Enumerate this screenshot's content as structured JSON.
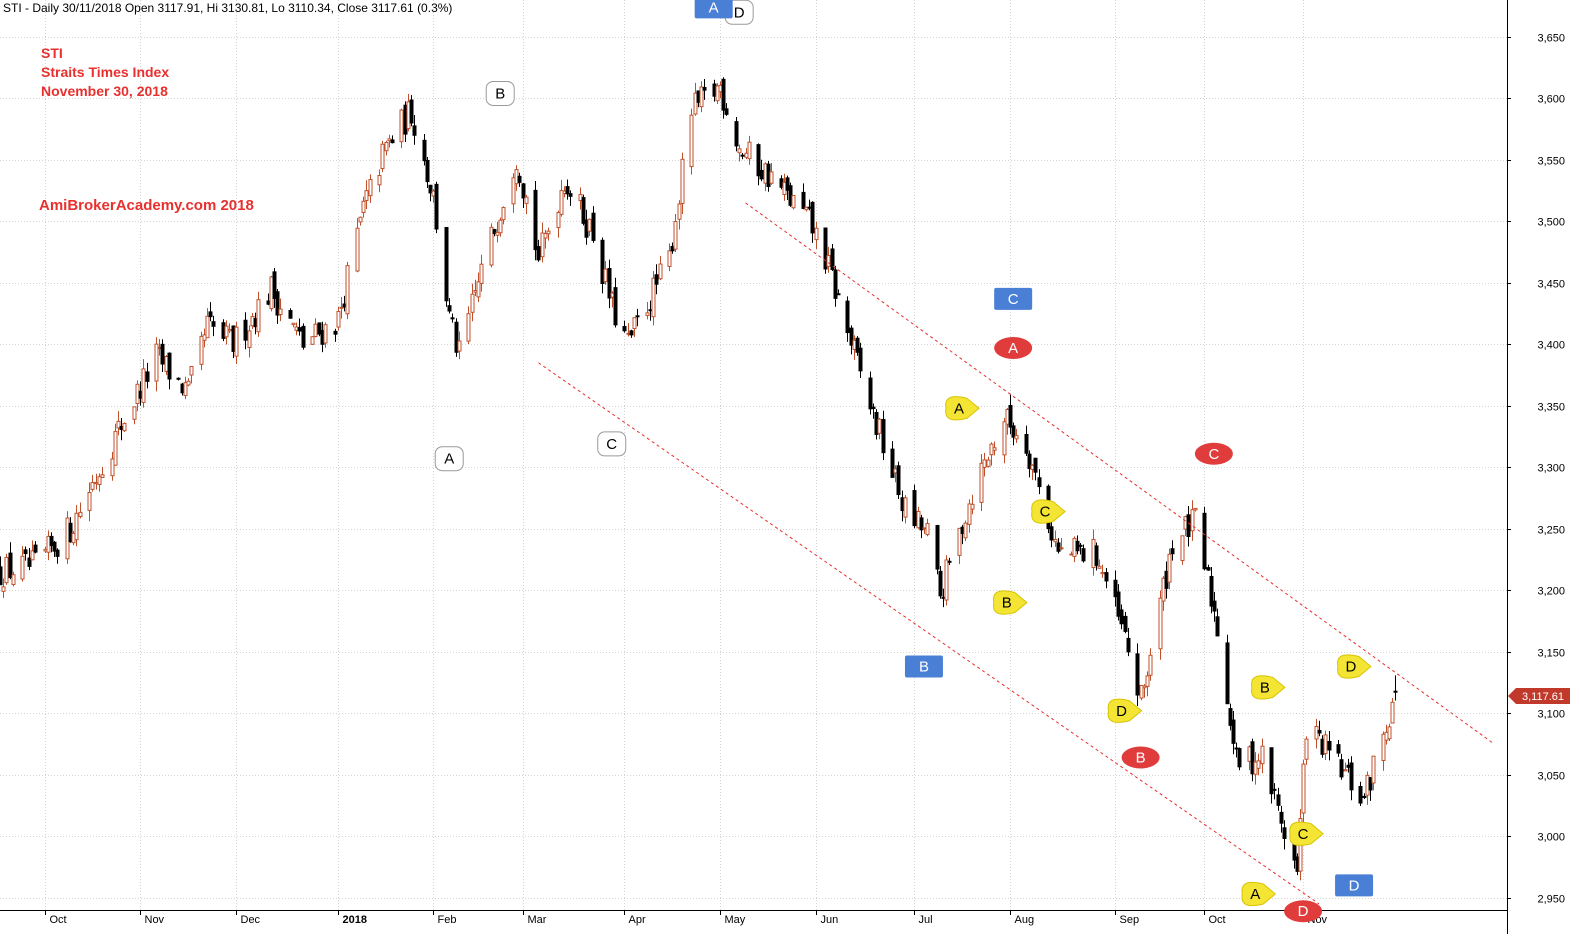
{
  "header": "STI - Daily 30/11/2018 Open 3117.91, Hi 3130.81, Lo 3110.34, Close 3117.61 (0.3%)",
  "title_lines": [
    "STI",
    "Straits Times Index",
    "November 30, 2018"
  ],
  "watermark": "AmiBrokerAcademy.com  2018",
  "colors": {
    "up": "#c0502a",
    "down": "#000000",
    "grid": "#d4d4d4",
    "channel": "#e8302e",
    "price_badge": "#c0392b",
    "badge_blue": "#4a7fd6",
    "badge_red": "#e03c3c",
    "badge_yellow": "#f4e535",
    "badge_white": "#ffffff"
  },
  "y_axis": {
    "range": [
      2940,
      3680
    ],
    "ticks": [
      {
        "value": 2950,
        "label": "2,950"
      },
      {
        "value": 3000,
        "label": "3,000"
      },
      {
        "value": 3050,
        "label": "3,050"
      },
      {
        "value": 3100,
        "label": "3,100"
      },
      {
        "value": 3150,
        "label": "3,150"
      },
      {
        "value": 3200,
        "label": "3,200"
      },
      {
        "value": 3250,
        "label": "3,250"
      },
      {
        "value": 3300,
        "label": "3,300"
      },
      {
        "value": 3350,
        "label": "3,350"
      },
      {
        "value": 3400,
        "label": "3,400"
      },
      {
        "value": 3450,
        "label": "3,450"
      },
      {
        "value": 3500,
        "label": "3,500"
      },
      {
        "value": 3550,
        "label": "3,550"
      },
      {
        "value": 3600,
        "label": "3,600"
      },
      {
        "value": 3650,
        "label": "3,650"
      }
    ]
  },
  "last_price_label": "3,117.61",
  "chart_data": {
    "type": "candlestick",
    "title": "STI - Daily 30/11/2018",
    "x_range": [
      "2017-09-18",
      "2019-01-04"
    ],
    "x_ticks": [
      {
        "date": "2017-10-02",
        "label": "Oct",
        "bold": false
      },
      {
        "date": "2017-11-01",
        "label": "Nov",
        "bold": false
      },
      {
        "date": "2017-12-01",
        "label": "Dec",
        "bold": false
      },
      {
        "date": "2018-01-02",
        "label": "2018",
        "bold": true
      },
      {
        "date": "2018-02-01",
        "label": "Feb",
        "bold": false
      },
      {
        "date": "2018-03-01",
        "label": "Mar",
        "bold": false
      },
      {
        "date": "2018-04-02",
        "label": "Apr",
        "bold": false
      },
      {
        "date": "2018-05-02",
        "label": "May",
        "bold": false
      },
      {
        "date": "2018-06-01",
        "label": "Jun",
        "bold": false
      },
      {
        "date": "2018-07-02",
        "label": "Jul",
        "bold": false
      },
      {
        "date": "2018-08-01",
        "label": "Aug",
        "bold": false
      },
      {
        "date": "2018-09-03",
        "label": "Sep",
        "bold": false
      },
      {
        "date": "2018-10-01",
        "label": "Oct",
        "bold": false
      },
      {
        "date": "2018-11-01",
        "label": "Nov",
        "bold": false
      }
    ],
    "anchors": [
      {
        "date": "2017-09-18",
        "close": 3215
      },
      {
        "date": "2017-09-29",
        "close": 3220
      },
      {
        "date": "2017-10-10",
        "close": 3250
      },
      {
        "date": "2017-10-25",
        "close": 3330
      },
      {
        "date": "2017-11-06",
        "close": 3390
      },
      {
        "date": "2017-11-16",
        "close": 3360
      },
      {
        "date": "2017-11-22",
        "close": 3415
      },
      {
        "date": "2017-11-30",
        "close": 3400
      },
      {
        "date": "2017-12-12",
        "close": 3445
      },
      {
        "date": "2017-12-22",
        "close": 3400
      },
      {
        "date": "2018-01-02",
        "close": 3420
      },
      {
        "date": "2018-01-10",
        "close": 3510
      },
      {
        "date": "2018-01-17",
        "close": 3560
      },
      {
        "date": "2018-01-25",
        "close": 3590
      },
      {
        "date": "2018-02-01",
        "close": 3520
      },
      {
        "date": "2018-02-06",
        "close": 3420
      },
      {
        "date": "2018-02-09",
        "close": 3390
      },
      {
        "date": "2018-02-16",
        "close": 3460
      },
      {
        "date": "2018-02-27",
        "close": 3555
      },
      {
        "date": "2018-03-06",
        "close": 3470
      },
      {
        "date": "2018-03-14",
        "close": 3535
      },
      {
        "date": "2018-03-23",
        "close": 3490
      },
      {
        "date": "2018-03-29",
        "close": 3430
      },
      {
        "date": "2018-04-03",
        "close": 3400
      },
      {
        "date": "2018-04-16",
        "close": 3470
      },
      {
        "date": "2018-04-23",
        "close": 3590
      },
      {
        "date": "2018-05-02",
        "close": 3610
      },
      {
        "date": "2018-05-08",
        "close": 3560
      },
      {
        "date": "2018-05-18",
        "close": 3535
      },
      {
        "date": "2018-05-30",
        "close": 3500
      },
      {
        "date": "2018-06-04",
        "close": 3470
      },
      {
        "date": "2018-06-18",
        "close": 3350
      },
      {
        "date": "2018-06-29",
        "close": 3265
      },
      {
        "date": "2018-07-06",
        "close": 3245
      },
      {
        "date": "2018-07-10",
        "close": 3195
      },
      {
        "date": "2018-07-20",
        "close": 3280
      },
      {
        "date": "2018-07-30",
        "close": 3340
      },
      {
        "date": "2018-08-06",
        "close": 3320
      },
      {
        "date": "2018-08-16",
        "close": 3230
      },
      {
        "date": "2018-08-28",
        "close": 3230
      },
      {
        "date": "2018-09-06",
        "close": 3160
      },
      {
        "date": "2018-09-11",
        "close": 3110
      },
      {
        "date": "2018-09-21",
        "close": 3240
      },
      {
        "date": "2018-09-28",
        "close": 3255
      },
      {
        "date": "2018-10-05",
        "close": 3170
      },
      {
        "date": "2018-10-11",
        "close": 3060
      },
      {
        "date": "2018-10-19",
        "close": 3065
      },
      {
        "date": "2018-10-30",
        "close": 2970
      },
      {
        "date": "2018-11-02",
        "close": 3090
      },
      {
        "date": "2018-11-08",
        "close": 3070
      },
      {
        "date": "2018-11-20",
        "close": 3030
      },
      {
        "date": "2018-11-30",
        "close": 3118
      }
    ],
    "last_bar": {
      "date": "2018-11-30",
      "open": 3117.91,
      "high": 3130.81,
      "low": 3110.34,
      "close": 3117.61
    },
    "channel_lines": [
      {
        "from": {
          "date": "2018-03-06",
          "value": 3385
        },
        "to": {
          "date": "2018-11-06",
          "value": 2945
        }
      },
      {
        "from": {
          "date": "2018-05-10",
          "value": 3515
        },
        "to": {
          "date": "2018-12-31",
          "value": 3075
        }
      }
    ],
    "wave_labels": [
      {
        "text": "A",
        "style": "white",
        "shape": "rounded",
        "date": "2018-02-06",
        "value": 3307
      },
      {
        "text": "B",
        "style": "white",
        "shape": "rounded",
        "date": "2018-02-22",
        "value": 3604
      },
      {
        "text": "C",
        "style": "white",
        "shape": "rounded",
        "date": "2018-03-29",
        "value": 3319
      },
      {
        "text": "D",
        "style": "white",
        "shape": "rounded",
        "date": "2018-05-08",
        "value": 3670
      },
      {
        "text": "A",
        "style": "blue",
        "shape": "rect",
        "date": "2018-04-30",
        "value": 3674
      },
      {
        "text": "B",
        "style": "blue",
        "shape": "rect",
        "date": "2018-07-05",
        "value": 3138
      },
      {
        "text": "C",
        "style": "blue",
        "shape": "rect",
        "date": "2018-08-02",
        "value": 3437
      },
      {
        "text": "D",
        "style": "blue",
        "shape": "rect",
        "date": "2018-11-17",
        "value": 2960
      },
      {
        "text": "A",
        "style": "red",
        "shape": "oval",
        "date": "2018-08-02",
        "value": 3397
      },
      {
        "text": "B",
        "style": "red",
        "shape": "oval",
        "date": "2018-09-11",
        "value": 3064
      },
      {
        "text": "C",
        "style": "red",
        "shape": "oval",
        "date": "2018-10-04",
        "value": 3311
      },
      {
        "text": "D",
        "style": "red",
        "shape": "oval",
        "date": "2018-11-01",
        "value": 2939
      },
      {
        "text": "A",
        "style": "yellow",
        "shape": "drop",
        "date": "2018-07-16",
        "value": 3348
      },
      {
        "text": "B",
        "style": "yellow",
        "shape": "drop",
        "date": "2018-07-31",
        "value": 3190
      },
      {
        "text": "C",
        "style": "yellow",
        "shape": "drop",
        "date": "2018-08-12",
        "value": 3264
      },
      {
        "text": "D",
        "style": "yellow",
        "shape": "drop",
        "date": "2018-09-05",
        "value": 3102
      },
      {
        "text": "A",
        "style": "yellow",
        "shape": "drop",
        "date": "2018-10-17",
        "value": 2953
      },
      {
        "text": "B",
        "style": "yellow",
        "shape": "drop",
        "date": "2018-10-20",
        "value": 3121
      },
      {
        "text": "C",
        "style": "yellow",
        "shape": "drop",
        "date": "2018-11-01",
        "value": 3002
      },
      {
        "text": "D",
        "style": "yellow",
        "shape": "drop",
        "date": "2018-11-16",
        "value": 3138
      }
    ]
  }
}
